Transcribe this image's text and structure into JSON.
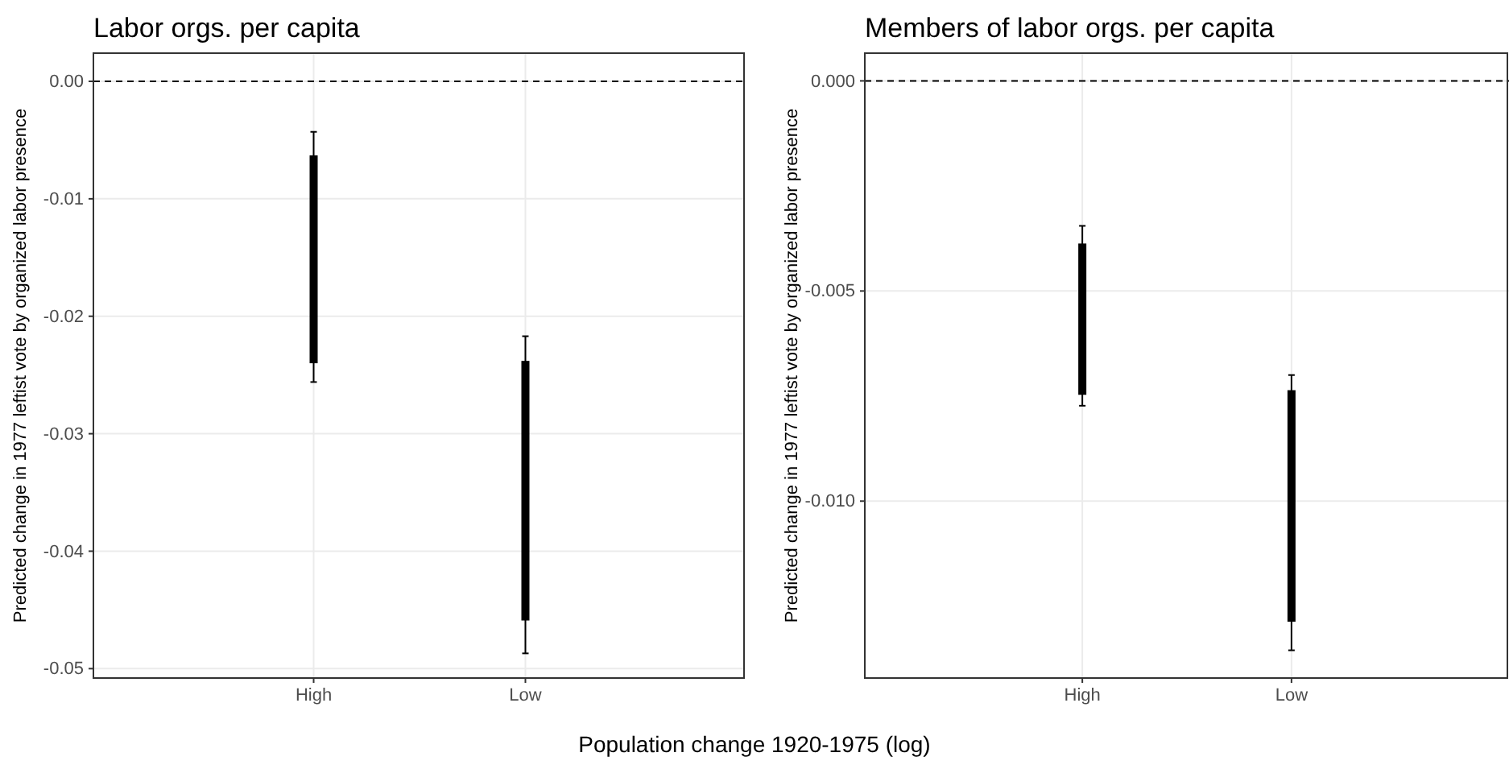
{
  "chart_data": [
    {
      "type": "box",
      "title": "Labor orgs. per capita",
      "xlabel": "Population change 1920-1975 (log)",
      "ylabel": "Predicted change in 1977 leftist vote by organized labor presence",
      "categories": [
        "High",
        "Low"
      ],
      "boxes": [
        {
          "low": -0.0256,
          "q1": -0.024,
          "median": -0.0155,
          "q3": -0.0063,
          "high": -0.0043
        },
        {
          "low": -0.0487,
          "q1": -0.0459,
          "median": -0.035,
          "q3": -0.0238,
          "high": -0.0217
        }
      ],
      "ylim": [
        -0.0508,
        0.0024
      ],
      "yticks": [
        {
          "value": 0,
          "label": "0.00"
        },
        {
          "value": -0.01,
          "label": "-0.01"
        },
        {
          "value": -0.02,
          "label": "-0.02"
        },
        {
          "value": -0.03,
          "label": "-0.03"
        },
        {
          "value": -0.04,
          "label": "-0.04"
        },
        {
          "value": -0.05,
          "label": "-0.05"
        }
      ],
      "grid": true,
      "ref_lines": [
        {
          "axis": "y",
          "value": 0,
          "line_style": "dashed",
          "color": "#000000"
        }
      ]
    },
    {
      "type": "box",
      "title": "Members of labor orgs. per capita",
      "ylabel": "Predicted change in 1977 leftist vote by organized labor presence",
      "categories": [
        "High",
        "Low"
      ],
      "boxes": [
        {
          "low": -0.00773,
          "q1": -0.00747,
          "median": -0.00562,
          "q3": -0.00387,
          "high": -0.00345
        },
        {
          "low": -0.01355,
          "q1": -0.01287,
          "median": -0.0101,
          "q3": -0.00736,
          "high": -0.007
        }
      ],
      "ylim": [
        -0.01421,
        0.00066
      ],
      "yticks": [
        {
          "value": 0,
          "label": "0.000"
        },
        {
          "value": -0.005,
          "label": "-0.005"
        },
        {
          "value": -0.01,
          "label": "-0.010"
        }
      ],
      "grid": true,
      "ref_lines": [
        {
          "axis": "y",
          "value": 0,
          "line_style": "dashed",
          "color": "#000000"
        }
      ]
    }
  ]
}
